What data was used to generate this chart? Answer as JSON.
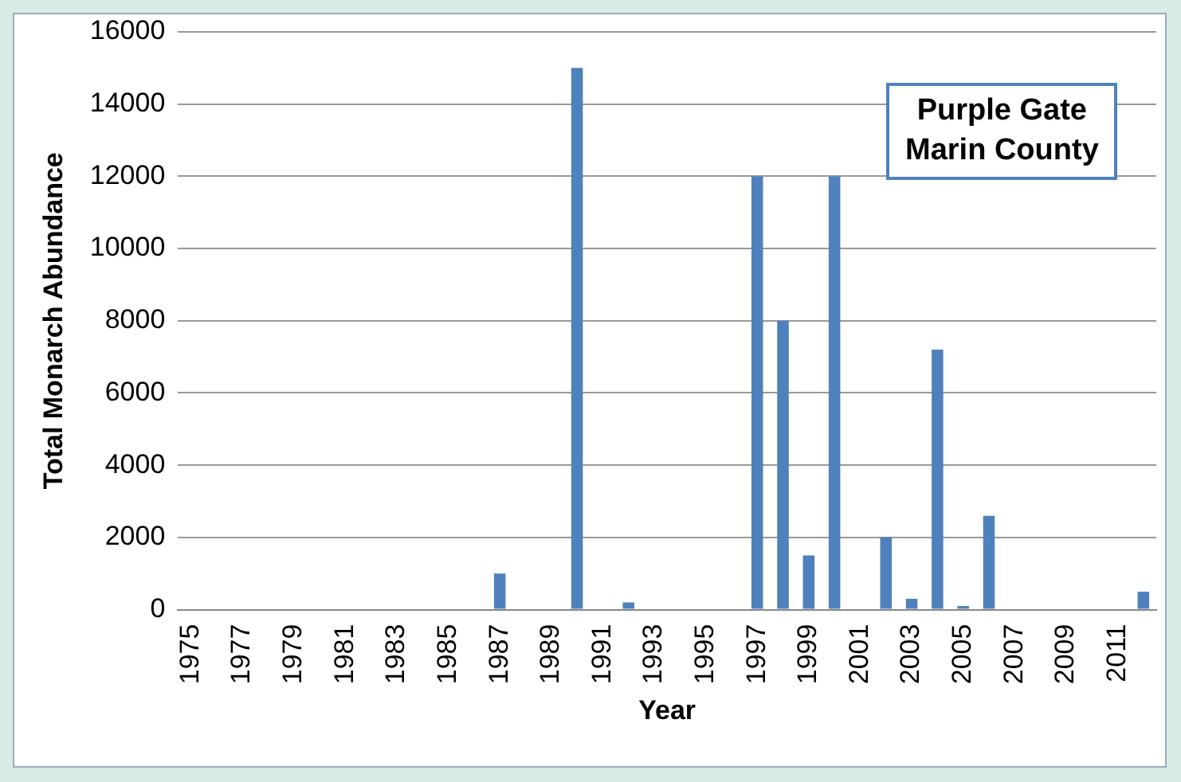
{
  "chart_data": {
    "type": "bar",
    "xlabel": "Year",
    "ylabel": "Total Monarch Abundance",
    "categories": [
      "1975",
      null,
      "1977",
      null,
      "1979",
      null,
      "1981",
      null,
      "1983",
      null,
      "1985",
      null,
      "1987",
      null,
      "1989",
      null,
      "1991",
      null,
      "1993",
      null,
      "1995",
      null,
      "1997",
      null,
      "1999",
      null,
      "2001",
      null,
      "2003",
      null,
      "2005",
      null,
      "2007",
      null,
      "2009",
      null,
      "2011",
      null
    ],
    "values": [
      0,
      0,
      0,
      0,
      0,
      0,
      0,
      0,
      0,
      0,
      0,
      0,
      1000,
      0,
      0,
      15000,
      0,
      200,
      0,
      0,
      0,
      0,
      12000,
      8000,
      1500,
      12000,
      0,
      2000,
      300,
      7200,
      100,
      2600,
      0,
      0,
      0,
      0,
      0,
      500
    ],
    "color": "#4f81bd",
    "ylim": [
      0,
      16000
    ],
    "yticks": [
      0,
      2000,
      4000,
      6000,
      8000,
      10000,
      12000,
      14000,
      16000
    ],
    "grid": "y",
    "legend": false,
    "annotations": [
      "Purple Gate\nMarin County"
    ]
  }
}
